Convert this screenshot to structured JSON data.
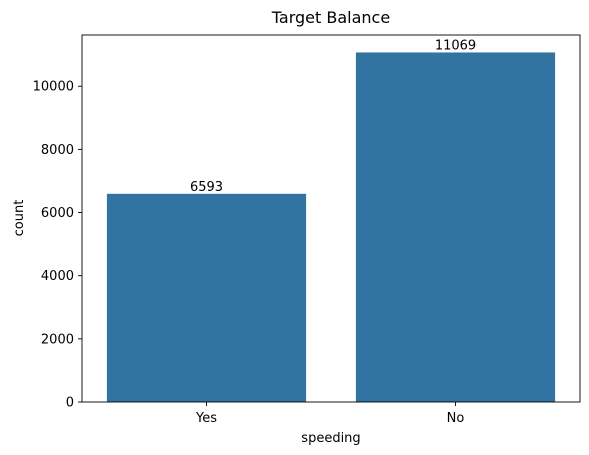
{
  "chart_data": {
    "type": "bar",
    "title": "Target Balance",
    "xlabel": "speeding",
    "ylabel": "count",
    "categories": [
      "Yes",
      "No"
    ],
    "values": [
      6593,
      11069
    ],
    "data_labels": [
      "6593",
      "11069"
    ],
    "yticks": [
      0,
      2000,
      4000,
      6000,
      8000,
      10000
    ],
    "ylim": [
      0,
      11622
    ],
    "grid": false,
    "bar_color": "#3274a1"
  }
}
